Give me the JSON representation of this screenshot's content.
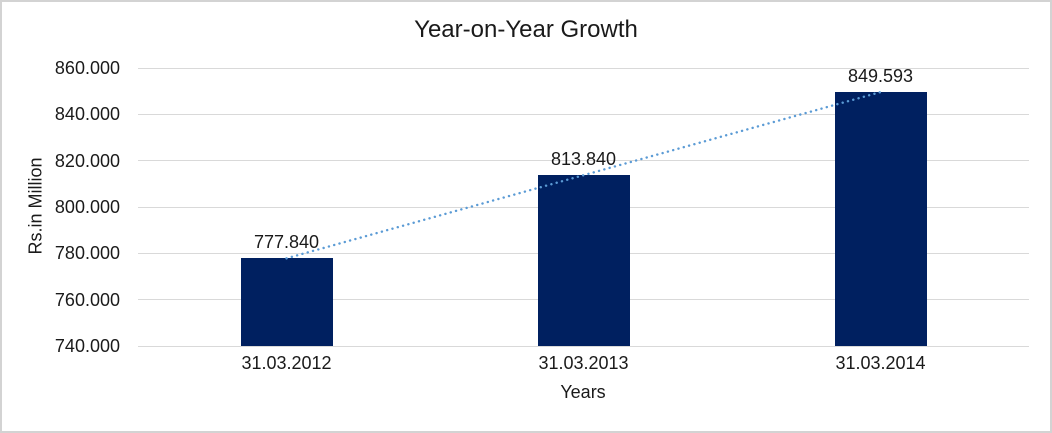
{
  "chart_data": {
    "type": "bar",
    "title": "Year-on-Year Growth",
    "categories": [
      "31.03.2012",
      "31.03.2013",
      "31.03.2014"
    ],
    "values": [
      777.84,
      813.84,
      849.593
    ],
    "value_labels": [
      "777.840",
      "813.840",
      "849.593"
    ],
    "xlabel": "Years",
    "ylabel": "Rs.in Million",
    "ylim": [
      740,
      860
    ],
    "ytick_step": 20,
    "ytick_labels": [
      "740.000",
      "760.000",
      "780.000",
      "800.000",
      "820.000",
      "840.000",
      "860.000"
    ],
    "grid": true,
    "legend_position": "none",
    "bar_color": "#002060",
    "gridline_color": "#d9d9d9",
    "trendline": {
      "type": "linear",
      "line_style": "dotted",
      "color": "#5b9bd5"
    }
  }
}
